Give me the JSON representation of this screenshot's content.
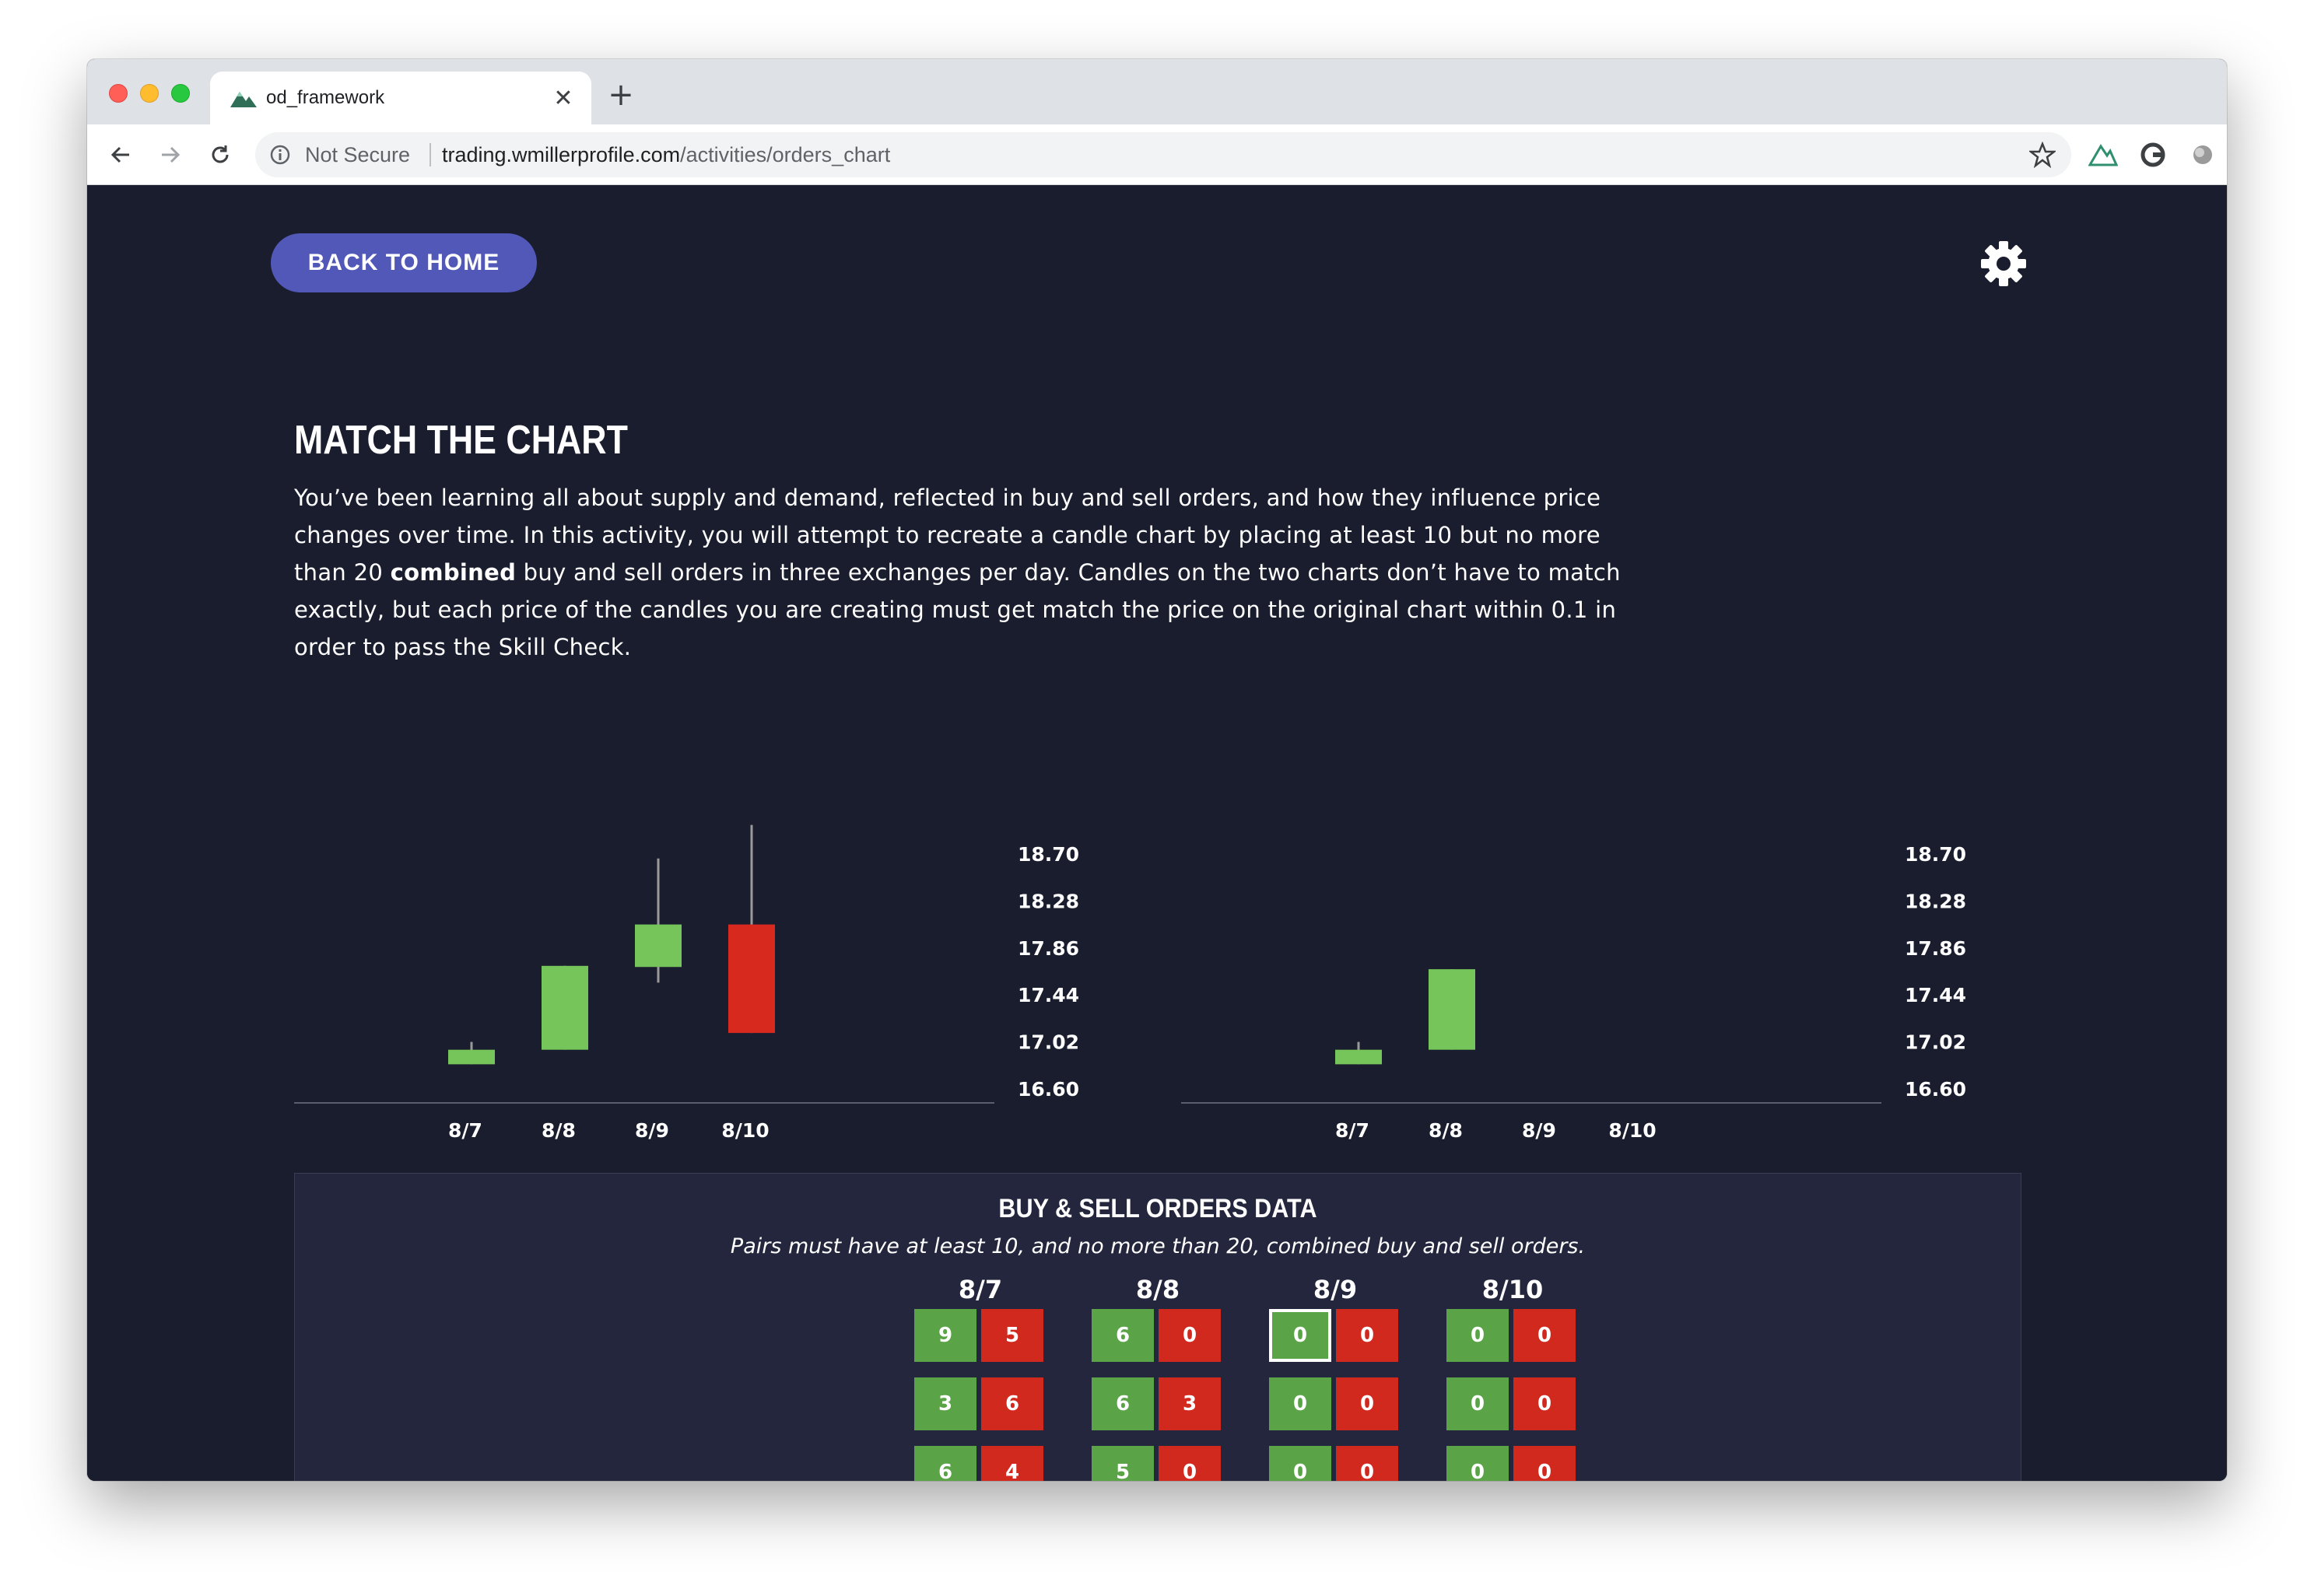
{
  "browser": {
    "tab_title": "od_framework",
    "tab_close": "✕",
    "new_tab": "+",
    "security_label": "Not Secure",
    "url_host": "trading.wmillerprofile.com",
    "url_path": "/activities/orders_chart"
  },
  "page": {
    "back_button": "BACK TO HOME",
    "title": "MATCH THE CHART",
    "intro_part1": "You’ve been learning all about supply and demand, reflected in buy and sell orders, and how they influence price changes over time. In this activity, you will attempt to recreate a candle chart by placing at least 10 but no more than 20 ",
    "intro_bold": "combined",
    "intro_part2": " buy and sell orders in three exchanges per day. Candles on the two charts don’t have to match exactly, but each price of the candles you are creating must get match the price on the original chart within 0.1 in order to pass the Skill Check."
  },
  "colors": {
    "up": "#76c55a",
    "down": "#d8291f",
    "wick": "#9a9a9a",
    "background": "#1a1d2e",
    "button": "#5158b8"
  },
  "chart_data": [
    {
      "type": "candlestick",
      "categories": [
        "8/7",
        "8/8",
        "8/9",
        "8/10"
      ],
      "y_ticks": [
        "18.70",
        "18.28",
        "17.86",
        "17.44",
        "17.02",
        "16.60"
      ],
      "ylim": [
        16.6,
        18.7
      ],
      "candles": [
        {
          "x": "8/7",
          "open": 16.82,
          "close": 16.95,
          "high": 17.02,
          "low": 16.82
        },
        {
          "x": "8/8",
          "open": 16.95,
          "close": 17.7,
          "high": 17.7,
          "low": 16.95
        },
        {
          "x": "8/9",
          "open": 17.69,
          "close": 18.07,
          "high": 18.66,
          "low": 17.55
        },
        {
          "x": "8/10",
          "open": 18.07,
          "close": 17.1,
          "high": 18.96,
          "low": 17.1
        }
      ]
    },
    {
      "type": "candlestick",
      "categories": [
        "8/7",
        "8/8",
        "8/9",
        "8/10"
      ],
      "y_ticks": [
        "18.70",
        "18.28",
        "17.86",
        "17.44",
        "17.02",
        "16.60"
      ],
      "ylim": [
        16.6,
        18.7
      ],
      "candles": [
        {
          "x": "8/7",
          "open": 16.82,
          "close": 16.95,
          "high": 17.02,
          "low": 16.82
        },
        {
          "x": "8/8",
          "open": 16.95,
          "close": 17.67,
          "high": 17.67,
          "low": 16.95
        }
      ]
    }
  ],
  "orders": {
    "title": "BUY & SELL ORDERS DATA",
    "subtitle": "Pairs must have at least 10, and no more than 20, combined buy and sell orders.",
    "days": [
      {
        "label": "8/7",
        "pairs": [
          {
            "buy": "9",
            "sell": "5"
          },
          {
            "buy": "3",
            "sell": "6"
          },
          {
            "buy": "6",
            "sell": "4"
          }
        ]
      },
      {
        "label": "8/8",
        "pairs": [
          {
            "buy": "6",
            "sell": "0"
          },
          {
            "buy": "6",
            "sell": "3"
          },
          {
            "buy": "5",
            "sell": "0"
          }
        ]
      },
      {
        "label": "8/9",
        "pairs": [
          {
            "buy": "0",
            "sell": "0"
          },
          {
            "buy": "0",
            "sell": "0"
          },
          {
            "buy": "0",
            "sell": "0"
          }
        ]
      },
      {
        "label": "8/10",
        "pairs": [
          {
            "buy": "0",
            "sell": "0"
          },
          {
            "buy": "0",
            "sell": "0"
          },
          {
            "buy": "0",
            "sell": "0"
          }
        ]
      }
    ]
  }
}
